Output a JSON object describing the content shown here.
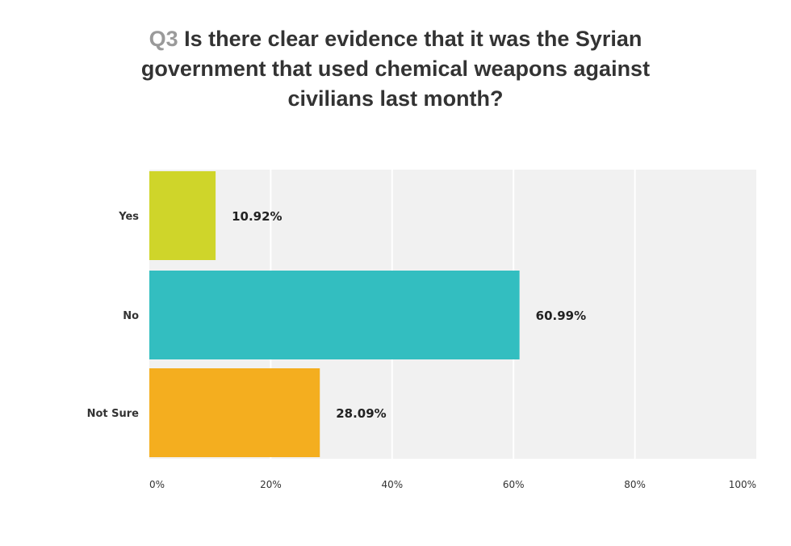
{
  "chart_data": {
    "type": "bar",
    "orientation": "horizontal",
    "question_number": "Q3",
    "title": "Is there clear evidence that it was the Syrian government that used chemical weapons against civilians last month?",
    "categories": [
      "Yes",
      "No",
      "Not Sure"
    ],
    "values": [
      10.92,
      60.99,
      28.09
    ],
    "value_labels": [
      "10.92%",
      "60.99%",
      "28.09%"
    ],
    "colors": [
      "#cfd52a",
      "#33bec0",
      "#f4ae1f"
    ],
    "xlim": [
      0,
      100
    ],
    "x_ticks": [
      0,
      20,
      40,
      60,
      80,
      100
    ],
    "x_tick_labels": [
      "0%",
      "20%",
      "40%",
      "60%",
      "80%",
      "100%"
    ],
    "grid": true,
    "legend": "none",
    "plot_background": "#f1f1f1"
  }
}
